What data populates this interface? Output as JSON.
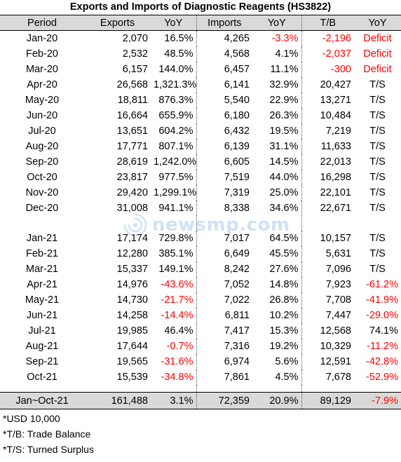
{
  "title": "Exports and Imports of Diagnostic Reagents (HS3822)",
  "headers": [
    "Period",
    "Exports",
    "YoY",
    "Imports",
    "YoY",
    "T/B",
    "YoY"
  ],
  "colors": {
    "negative": "#ff0000",
    "header_bg": "#d9d9d9"
  },
  "rows_2020": [
    {
      "period": "Jan-20",
      "exports": "2,070",
      "ex_yoy": "16.5%",
      "imports": "4,265",
      "im_yoy": "-3.3%",
      "tb": "-2,196",
      "tb_yoy": "Deficit"
    },
    {
      "period": "Feb-20",
      "exports": "2,532",
      "ex_yoy": "48.5%",
      "imports": "4,568",
      "im_yoy": "4.1%",
      "tb": "-2,037",
      "tb_yoy": "Deficit"
    },
    {
      "period": "Mar-20",
      "exports": "6,157",
      "ex_yoy": "144.0%",
      "imports": "6,457",
      "im_yoy": "11.1%",
      "tb": "-300",
      "tb_yoy": "Deficit"
    },
    {
      "period": "Apr-20",
      "exports": "26,568",
      "ex_yoy": "1,321.3%",
      "imports": "6,141",
      "im_yoy": "32.9%",
      "tb": "20,427",
      "tb_yoy": "T/S"
    },
    {
      "period": "May-20",
      "exports": "18,811",
      "ex_yoy": "876.3%",
      "imports": "5,540",
      "im_yoy": "22.9%",
      "tb": "13,271",
      "tb_yoy": "T/S"
    },
    {
      "period": "Jun-20",
      "exports": "16,664",
      "ex_yoy": "655.9%",
      "imports": "6,180",
      "im_yoy": "26.3%",
      "tb": "10,484",
      "tb_yoy": "T/S"
    },
    {
      "period": "Jul-20",
      "exports": "13,651",
      "ex_yoy": "604.2%",
      "imports": "6,432",
      "im_yoy": "19.5%",
      "tb": "7,219",
      "tb_yoy": "T/S"
    },
    {
      "period": "Aug-20",
      "exports": "17,771",
      "ex_yoy": "807.1%",
      "imports": "6,139",
      "im_yoy": "31.1%",
      "tb": "11,633",
      "tb_yoy": "T/S"
    },
    {
      "period": "Sep-20",
      "exports": "28,619",
      "ex_yoy": "1,242.0%",
      "imports": "6,605",
      "im_yoy": "14.5%",
      "tb": "22,013",
      "tb_yoy": "T/S"
    },
    {
      "period": "Oct-20",
      "exports": "23,817",
      "ex_yoy": "977.5%",
      "imports": "7,519",
      "im_yoy": "44.0%",
      "tb": "16,298",
      "tb_yoy": "T/S"
    },
    {
      "period": "Nov-20",
      "exports": "29,420",
      "ex_yoy": "1,299.1%",
      "imports": "7,319",
      "im_yoy": "25.0%",
      "tb": "22,101",
      "tb_yoy": "T/S"
    },
    {
      "period": "Dec-20",
      "exports": "31,008",
      "ex_yoy": "941.1%",
      "imports": "8,338",
      "im_yoy": "34.6%",
      "tb": "22,671",
      "tb_yoy": "T/S"
    }
  ],
  "rows_2021": [
    {
      "period": "Jan-21",
      "exports": "17,174",
      "ex_yoy": "729.8%",
      "imports": "7,017",
      "im_yoy": "64.5%",
      "tb": "10,157",
      "tb_yoy": "T/S"
    },
    {
      "period": "Feb-21",
      "exports": "12,280",
      "ex_yoy": "385.1%",
      "imports": "6,649",
      "im_yoy": "45.5%",
      "tb": "5,631",
      "tb_yoy": "T/S"
    },
    {
      "period": "Mar-21",
      "exports": "15,337",
      "ex_yoy": "149.1%",
      "imports": "8,242",
      "im_yoy": "27.6%",
      "tb": "7,096",
      "tb_yoy": "T/S"
    },
    {
      "period": "Apr-21",
      "exports": "14,976",
      "ex_yoy": "-43.6%",
      "imports": "7,052",
      "im_yoy": "14.8%",
      "tb": "7,923",
      "tb_yoy": "-61.2%"
    },
    {
      "period": "May-21",
      "exports": "14,730",
      "ex_yoy": "-21.7%",
      "imports": "7,022",
      "im_yoy": "26.8%",
      "tb": "7,708",
      "tb_yoy": "-41.9%"
    },
    {
      "period": "Jun-21",
      "exports": "14,258",
      "ex_yoy": "-14.4%",
      "imports": "6,811",
      "im_yoy": "10.2%",
      "tb": "7,447",
      "tb_yoy": "-29.0%"
    },
    {
      "period": "Jul-21",
      "exports": "19,985",
      "ex_yoy": "46.4%",
      "imports": "7,417",
      "im_yoy": "15.3%",
      "tb": "12,568",
      "tb_yoy": "74.1%"
    },
    {
      "period": "Aug-21",
      "exports": "17,644",
      "ex_yoy": "-0.7%",
      "imports": "7,316",
      "im_yoy": "19.2%",
      "tb": "10,329",
      "tb_yoy": "-11.2%"
    },
    {
      "period": "Sep-21",
      "exports": "19,565",
      "ex_yoy": "-31.6%",
      "imports": "6,974",
      "im_yoy": "5.6%",
      "tb": "12,591",
      "tb_yoy": "-42.8%"
    },
    {
      "period": "Oct-21",
      "exports": "15,539",
      "ex_yoy": "-34.8%",
      "imports": "7,861",
      "im_yoy": "4.5%",
      "tb": "7,678",
      "tb_yoy": "-52.9%"
    }
  ],
  "total": {
    "period": "Jan~Oct-21",
    "exports": "161,488",
    "ex_yoy": "3.1%",
    "imports": "72,359",
    "im_yoy": "20.9%",
    "tb": "89,129",
    "tb_yoy": "-7.9%"
  },
  "notes": [
    "*USD 10,000",
    "*T/B: Trade Balance",
    "*T/S: Turned Surplus"
  ],
  "watermark": {
    "text": "newsmp.com",
    "icon": "newsmp-logo-icon"
  }
}
